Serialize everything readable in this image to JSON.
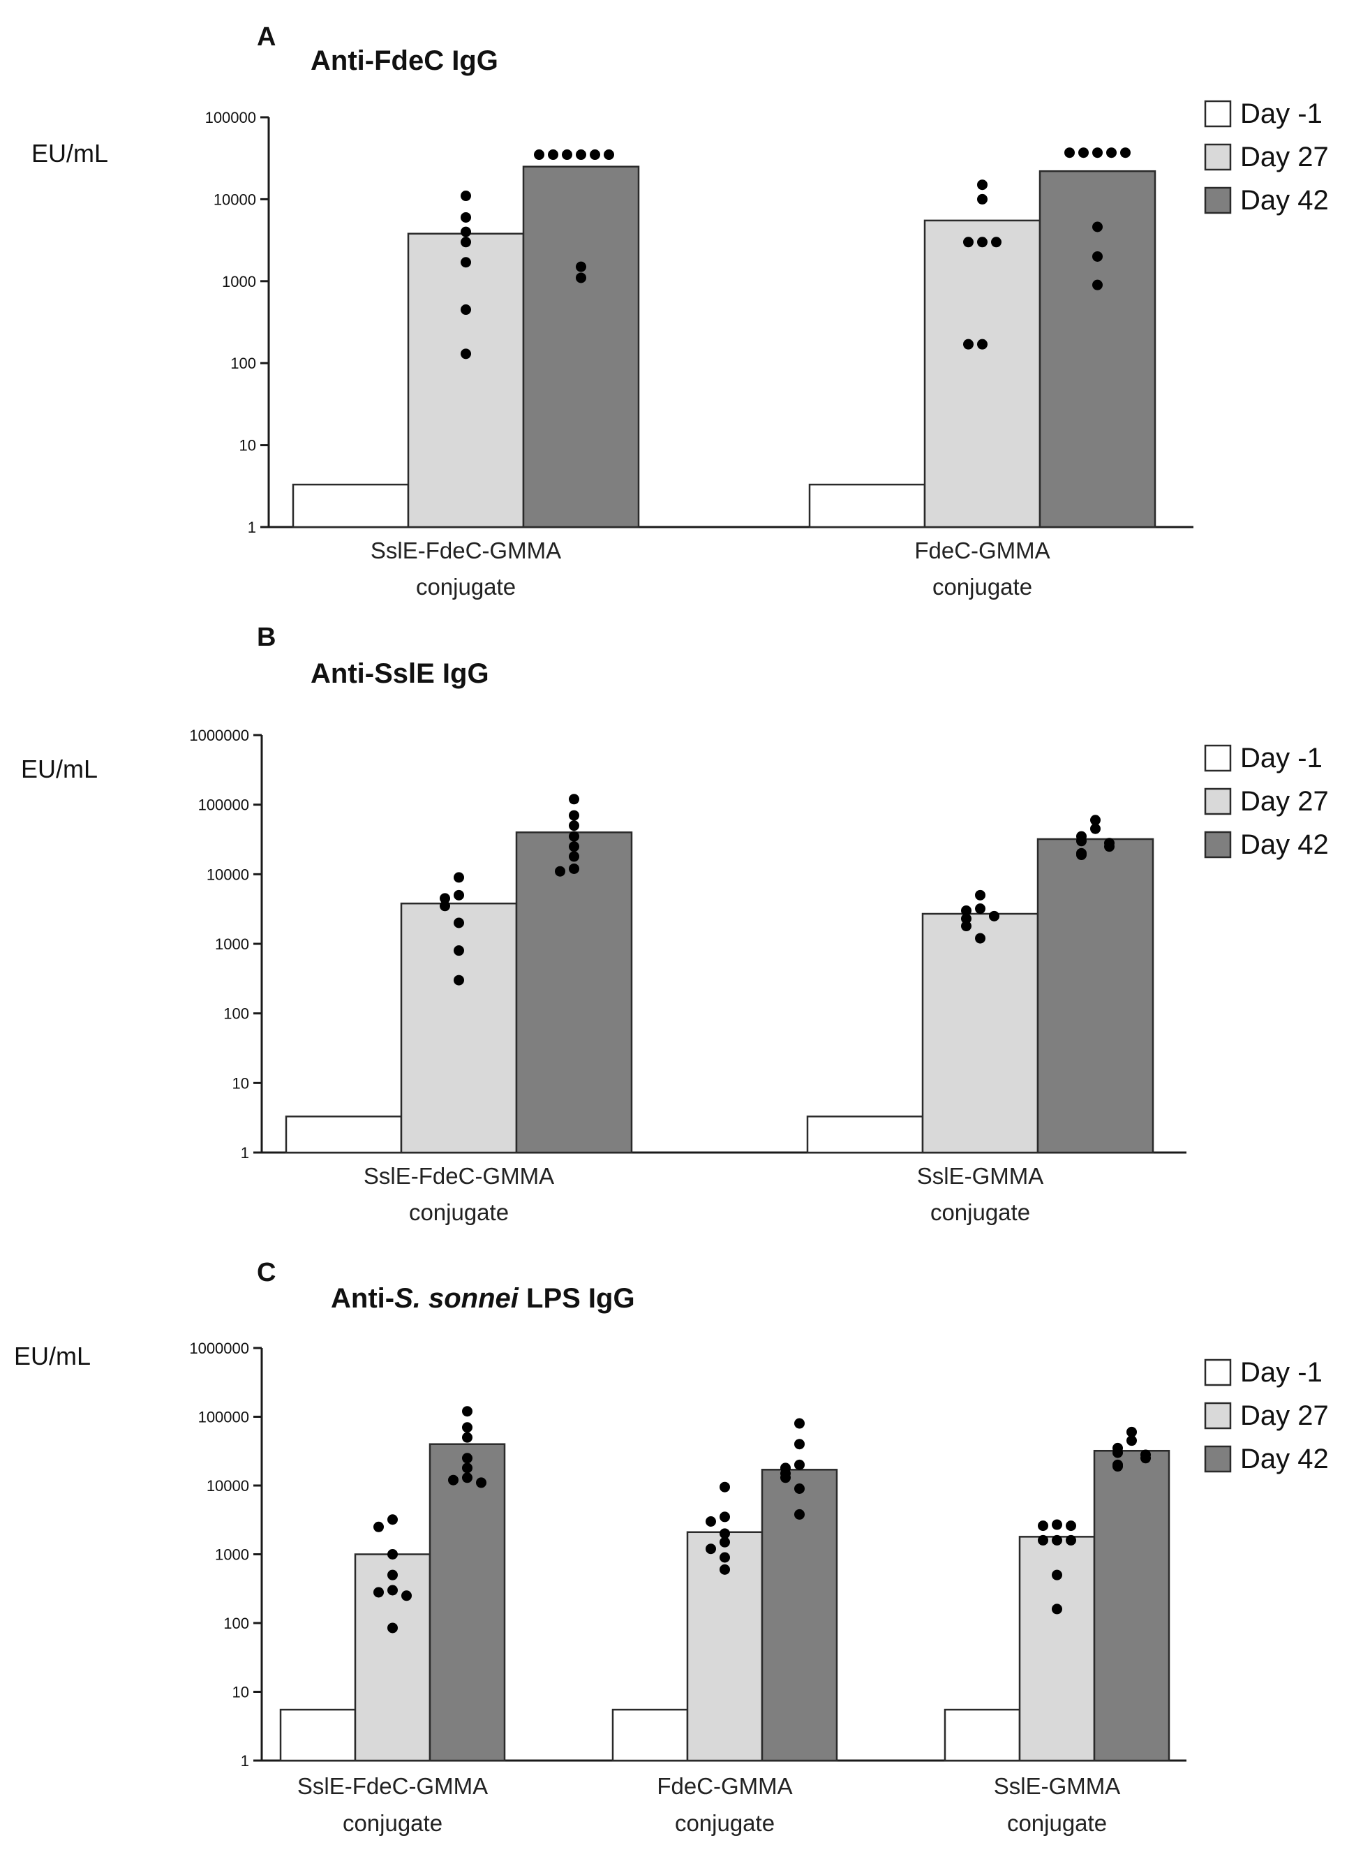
{
  "figure": {
    "colors": {
      "day_minus1": "#ffffff",
      "day_27": "#d9d9d9",
      "day_42": "#7f7f7f",
      "dot": "#000000",
      "axis": "#1a1a1a"
    }
  },
  "chart_data": [
    {
      "type": "bar",
      "panel": "A",
      "title_parts": [
        "Anti-FdeC IgG"
      ],
      "ylabel": "EU/mL",
      "yscale": "log",
      "ylim": [
        1,
        100000
      ],
      "yticks": [
        1,
        10,
        100,
        1000,
        10000,
        100000
      ],
      "ytick_labels": [
        "1",
        "10",
        "100",
        "1000",
        "10000",
        "100000"
      ],
      "categories": [
        {
          "lines": [
            "SslE-FdeC-GMMA",
            "conjugate"
          ]
        },
        {
          "lines": [
            "FdeC-GMMA",
            "conjugate"
          ]
        }
      ],
      "legend": [
        "Day -1",
        "Day 27",
        "Day 42"
      ],
      "series": [
        {
          "name": "Day -1",
          "values": [
            3.3,
            3.3
          ]
        },
        {
          "name": "Day 27",
          "values": [
            3800,
            5500
          ]
        },
        {
          "name": "Day 42",
          "values": [
            25000,
            22000
          ]
        }
      ],
      "points": [
        [
          [],
          []
        ],
        [
          [
            11000,
            6000,
            4000,
            3000,
            1700,
            450,
            130
          ],
          [
            15000,
            10000,
            3000,
            3000,
            3000,
            170,
            170
          ]
        ],
        [
          [
            35000,
            35000,
            35000,
            35000,
            35000,
            35000,
            1500,
            1100
          ],
          [
            37000,
            37000,
            37000,
            37000,
            37000,
            4600,
            2000,
            900
          ]
        ]
      ]
    },
    {
      "type": "bar",
      "panel": "B",
      "title_parts": [
        "Anti-SslE IgG"
      ],
      "ylabel": "EU/mL",
      "yscale": "log",
      "ylim": [
        1,
        1000000
      ],
      "yticks": [
        1,
        10,
        100,
        1000,
        10000,
        100000,
        1000000
      ],
      "ytick_labels": [
        "1",
        "10",
        "100",
        "1000",
        "10000",
        "100000",
        "1000000"
      ],
      "categories": [
        {
          "lines": [
            "SslE-FdeC-GMMA",
            "conjugate"
          ]
        },
        {
          "lines": [
            "SslE-GMMA",
            "conjugate"
          ]
        }
      ],
      "legend": [
        "Day -1",
        "Day 27",
        "Day 42"
      ],
      "series": [
        {
          "name": "Day -1",
          "values": [
            3.3,
            3.3
          ]
        },
        {
          "name": "Day 27",
          "values": [
            3800,
            2700
          ]
        },
        {
          "name": "Day 42",
          "values": [
            40000,
            32000
          ]
        }
      ],
      "points": [
        [
          [],
          []
        ],
        [
          [
            9000,
            5000,
            4500,
            3500,
            2000,
            800,
            300
          ],
          [
            5000,
            3200,
            3000,
            2500,
            2300,
            1800,
            1200
          ]
        ],
        [
          [
            120000,
            70000,
            50000,
            35000,
            25000,
            18000,
            12000,
            11000
          ],
          [
            60000,
            45000,
            35000,
            30000,
            28000,
            25000,
            20000,
            19000
          ]
        ]
      ]
    },
    {
      "type": "bar",
      "panel": "C",
      "title_parts": [
        "Anti-",
        "S. sonnei",
        " LPS IgG"
      ],
      "ylabel": "EU/mL",
      "yscale": "log",
      "ylim": [
        1,
        1000000
      ],
      "yticks": [
        1,
        10,
        100,
        1000,
        10000,
        100000,
        1000000
      ],
      "ytick_labels": [
        "1",
        "10",
        "100",
        "1000",
        "10000",
        "100000",
        "1000000"
      ],
      "categories": [
        {
          "lines": [
            "SslE-FdeC-GMMA",
            "conjugate"
          ]
        },
        {
          "lines": [
            "FdeC-GMMA",
            "conjugate"
          ]
        },
        {
          "lines": [
            "SslE-GMMA",
            "conjugate"
          ]
        }
      ],
      "legend": [
        "Day -1",
        "Day 27",
        "Day 42"
      ],
      "series": [
        {
          "name": "Day -1",
          "values": [
            5.5,
            5.5,
            5.5
          ]
        },
        {
          "name": "Day 27",
          "values": [
            1000,
            2100,
            1800
          ]
        },
        {
          "name": "Day 42",
          "values": [
            40000,
            17000,
            32000
          ]
        }
      ],
      "points": [
        [
          [],
          [],
          []
        ],
        [
          [
            3200,
            2500,
            1000,
            500,
            300,
            280,
            250,
            85
          ],
          [
            9500,
            3500,
            3000,
            2000,
            1500,
            1200,
            900,
            600
          ],
          [
            2700,
            2600,
            2600,
            1600,
            1600,
            1600,
            500,
            160
          ]
        ],
        [
          [
            120000,
            70000,
            50000,
            25000,
            18000,
            13000,
            12000,
            11000
          ],
          [
            80000,
            40000,
            20000,
            18000,
            15000,
            13000,
            9000,
            3800
          ],
          [
            60000,
            45000,
            35000,
            30000,
            28000,
            25000,
            20000,
            19000
          ]
        ]
      ]
    }
  ]
}
